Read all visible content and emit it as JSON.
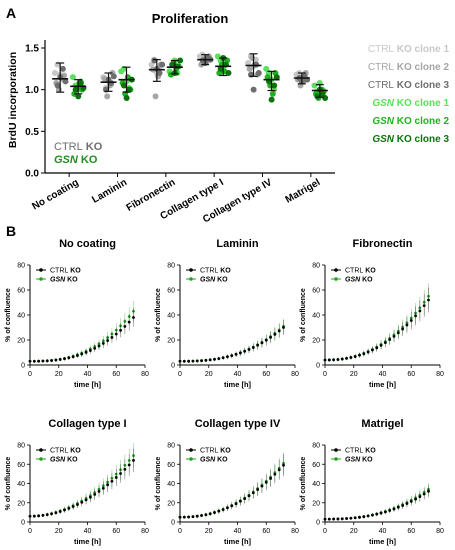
{
  "panel_a": {
    "letter": "A",
    "chart_data": {
      "type": "scatter",
      "title": "Proliferation",
      "xlabel": "",
      "ylabel": "BrdU incorporation",
      "ylim": [
        0,
        1.5
      ],
      "yticks": [
        "0.0",
        "0.5",
        "1.0",
        "1.5"
      ],
      "categories": [
        "No coating",
        "Laminin",
        "Fibronectin",
        "Collagen type I",
        "Collagen type IV",
        "Matrigel"
      ],
      "series": [
        {
          "name": "CTRL KO clone 1",
          "gene": "CTRL",
          "suffix": " KO clone 1",
          "color": "#c8c8c8",
          "values": [
            [
              1.2,
              1.3,
              1.18,
              1.12
            ],
            [
              1.15,
              1.02,
              1.1,
              1.06
            ],
            [
              1.3,
              1.36,
              1.2,
              1.27
            ],
            [
              1.4,
              1.42,
              1.35,
              1.38
            ],
            [
              1.32,
              1.4,
              1.28,
              1.36
            ],
            [
              1.18,
              1.2,
              1.14,
              1.15
            ]
          ]
        },
        {
          "name": "CTRL KO clone 2",
          "gene": "CTRL",
          "suffix": " KO clone 2",
          "color": "#a6a6a6",
          "values": [
            [
              1.08,
              1.0,
              1.14,
              1.17
            ],
            [
              1.13,
              0.92,
              1.05,
              1.2
            ],
            [
              1.24,
              0.92,
              1.16,
              1.3
            ],
            [
              1.3,
              1.37,
              1.33,
              1.4
            ],
            [
              1.25,
              1.38,
              1.3,
              1.18
            ],
            [
              1.12,
              1.05,
              1.1,
              1.2
            ]
          ]
        },
        {
          "name": "CTRL KO clone 3",
          "gene": "CTRL",
          "suffix": " KO clone 3",
          "color": "#6e6e6e",
          "values": [
            [
              1.05,
              1.15,
              1.25,
              1.1
            ],
            [
              1.0,
              1.12,
              1.08,
              1.16
            ],
            [
              1.35,
              1.25,
              1.2,
              1.3
            ],
            [
              1.35,
              1.32,
              1.38,
              1.36
            ],
            [
              1.18,
              1.0,
              1.3,
              1.2
            ],
            [
              1.14,
              1.1,
              1.16,
              1.12
            ]
          ]
        },
        {
          "name": "GSN KO clone 1",
          "gene": "GSN",
          "suffix": " KO clone 1",
          "color": "#5be05b",
          "values": [
            [
              1.15,
              1.05,
              1.0,
              1.1
            ],
            [
              1.22,
              1.25,
              1.1,
              1.02
            ],
            [
              1.22,
              1.3,
              1.35,
              1.2
            ],
            [
              1.4,
              1.35,
              1.25,
              1.3
            ],
            [
              1.25,
              1.2,
              1.12,
              1.0
            ],
            [
              1.05,
              0.98,
              1.08,
              1.0
            ]
          ]
        },
        {
          "name": "GSN KO clone 2",
          "gene": "GSN",
          "suffix": " KO clone 2",
          "color": "#22b022",
          "values": [
            [
              0.95,
              1.02,
              1.08,
              1.0
            ],
            [
              1.08,
              0.95,
              1.15,
              1.0
            ],
            [
              1.18,
              1.32,
              1.25,
              1.28
            ],
            [
              1.2,
              1.3,
              1.22,
              1.35
            ],
            [
              1.15,
              1.05,
              0.95,
              1.2
            ],
            [
              0.95,
              0.9,
              1.0,
              0.98
            ]
          ]
        },
        {
          "name": "GSN KO clone 3",
          "gene": "GSN",
          "suffix": " KO clone 3",
          "color": "#0b730b",
          "values": [
            [
              1.0,
              0.92,
              1.08,
              1.02
            ],
            [
              1.05,
              0.9,
              1.0,
              1.12
            ],
            [
              1.3,
              1.2,
              1.28,
              1.35
            ],
            [
              1.25,
              1.38,
              1.3,
              1.2
            ],
            [
              1.1,
              0.88,
              1.05,
              1.15
            ],
            [
              0.92,
              1.0,
              0.95,
              0.9
            ]
          ]
        }
      ],
      "summary": {
        "ctrl": [
          [
            1.13,
            1.32,
            0.97
          ],
          [
            1.09,
            1.2,
            0.98
          ],
          [
            1.24,
            1.36,
            1.1
          ],
          [
            1.36,
            1.42,
            1.3
          ],
          [
            1.29,
            1.43,
            1.16
          ],
          [
            1.14,
            1.2,
            1.07
          ]
        ],
        "gsn": [
          [
            1.04,
            1.12,
            0.95
          ],
          [
            1.12,
            1.27,
            0.97
          ],
          [
            1.27,
            1.35,
            1.19
          ],
          [
            1.28,
            1.38,
            1.17
          ],
          [
            1.12,
            1.22,
            0.99
          ],
          [
            0.99,
            1.06,
            0.91
          ]
        ]
      },
      "inner_legend": [
        {
          "gene": "CTRL",
          "suffix": " KO",
          "color": "#6e6e6e"
        },
        {
          "gene": "GSN",
          "suffix": " KO",
          "color": "#1e8f1e"
        }
      ]
    }
  },
  "panel_b": {
    "letter": "B",
    "chart_data": [
      {
        "type": "line",
        "title": "No coating",
        "xlabel": "time [h]",
        "ylabel": "% of confluence",
        "xlim": [
          0,
          80
        ],
        "ylim": [
          0,
          80
        ],
        "xticks": [
          0,
          20,
          40,
          60,
          80
        ],
        "yticks": [
          0,
          20,
          40,
          60,
          80
        ],
        "x": [
          0,
          72
        ],
        "ctrl_end": 38,
        "gsn_end": 43,
        "exponent": 2.6,
        "start": 3,
        "series": [
          {
            "gene": "CTRL",
            "suffix": " KO",
            "color": "#000000"
          },
          {
            "gene": "GSN",
            "suffix": " KO",
            "color": "#1fa31f"
          }
        ]
      },
      {
        "type": "line",
        "title": "Laminin",
        "xlabel": "time [h]",
        "ylabel": "% of confluence",
        "xlim": [
          0,
          80
        ],
        "ylim": [
          0,
          80
        ],
        "xticks": [
          0,
          20,
          40,
          60,
          80
        ],
        "yticks": [
          0,
          20,
          40,
          60,
          80
        ],
        "x": [
          0,
          72
        ],
        "ctrl_end": 30,
        "gsn_end": 31,
        "exponent": 2.6,
        "start": 3,
        "series": [
          {
            "gene": "CTRL",
            "suffix": " KO",
            "color": "#000000"
          },
          {
            "gene": "GSN",
            "suffix": " KO",
            "color": "#1fa31f"
          }
        ]
      },
      {
        "type": "line",
        "title": "Fibronectin",
        "xlabel": "time [h]",
        "ylabel": "% of confluence",
        "xlim": [
          0,
          80
        ],
        "ylim": [
          0,
          80
        ],
        "xticks": [
          0,
          20,
          40,
          60,
          80
        ],
        "yticks": [
          0,
          20,
          40,
          60,
          80
        ],
        "x": [
          0,
          72
        ],
        "ctrl_end": 52,
        "gsn_end": 55,
        "exponent": 2.3,
        "start": 4,
        "series": [
          {
            "gene": "CTRL",
            "suffix": " KO",
            "color": "#000000"
          },
          {
            "gene": "GSN",
            "suffix": " KO",
            "color": "#1fa31f"
          }
        ]
      },
      {
        "type": "line",
        "title": "Collagen type I",
        "xlabel": "time [h]",
        "ylabel": "% of confluence",
        "xlim": [
          0,
          80
        ],
        "ylim": [
          0,
          80
        ],
        "xticks": [
          0,
          20,
          40,
          60,
          80
        ],
        "yticks": [
          0,
          20,
          40,
          60,
          80
        ],
        "x": [
          0,
          72
        ],
        "ctrl_end": 64,
        "gsn_end": 69,
        "exponent": 2.0,
        "start": 6,
        "series": [
          {
            "gene": "CTRL",
            "suffix": " KO",
            "color": "#000000"
          },
          {
            "gene": "GSN",
            "suffix": " KO",
            "color": "#1fa31f"
          }
        ]
      },
      {
        "type": "line",
        "title": "Collagen type IV",
        "xlabel": "time [h]",
        "ylabel": "% of confluence",
        "xlim": [
          0,
          80
        ],
        "ylim": [
          0,
          80
        ],
        "xticks": [
          0,
          20,
          40,
          60,
          80
        ],
        "yticks": [
          0,
          20,
          40,
          60,
          80
        ],
        "x": [
          0,
          72
        ],
        "ctrl_end": 59,
        "gsn_end": 61,
        "exponent": 2.2,
        "start": 5,
        "series": [
          {
            "gene": "CTRL",
            "suffix": " KO",
            "color": "#000000"
          },
          {
            "gene": "GSN",
            "suffix": " KO",
            "color": "#1fa31f"
          }
        ]
      },
      {
        "type": "line",
        "title": "Matrigel",
        "xlabel": "time [h]",
        "ylabel": "% of confluence",
        "xlim": [
          0,
          80
        ],
        "ylim": [
          0,
          80
        ],
        "xticks": [
          0,
          20,
          40,
          60,
          80
        ],
        "yticks": [
          0,
          20,
          40,
          60,
          80
        ],
        "x": [
          0,
          72
        ],
        "ctrl_end": 32,
        "gsn_end": 34,
        "exponent": 2.5,
        "start": 3,
        "series": [
          {
            "gene": "CTRL",
            "suffix": " KO",
            "color": "#000000"
          },
          {
            "gene": "GSN",
            "suffix": " KO",
            "color": "#1fa31f"
          }
        ]
      }
    ]
  }
}
